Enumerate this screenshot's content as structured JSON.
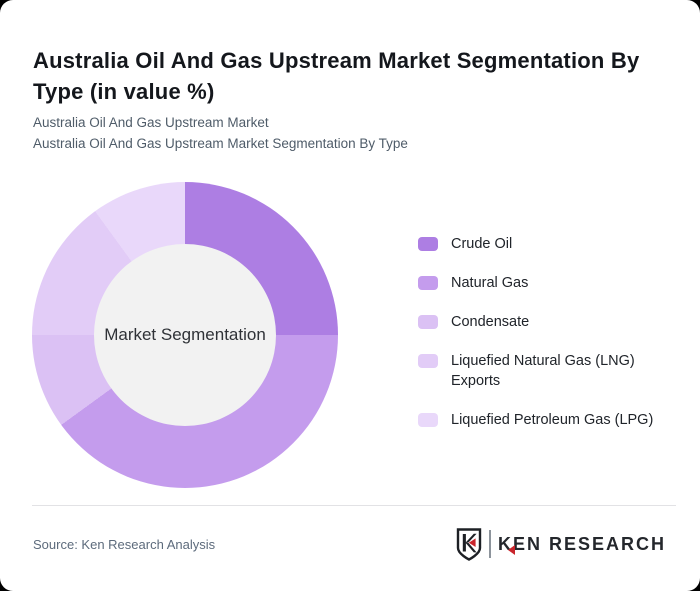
{
  "page": {
    "background_color": "#000000",
    "card_background_color": "#ffffff"
  },
  "header": {
    "title": "Australia Oil And Gas Upstream Market Segmentation By Type (in value %)",
    "subtitle_line1": "Australia Oil And Gas Upstream Market",
    "subtitle_line2": "Australia Oil And Gas Upstream Market Segmentation By Type"
  },
  "chart_data": {
    "type": "pie",
    "variant": "donut",
    "title": "Australia Oil And Gas Upstream Market Segmentation By Type (in value %)",
    "center_label": "Market Segmentation",
    "categories": [
      "Crude Oil",
      "Natural Gas",
      "Condensate",
      "Liquefied Natural Gas (LNG) Exports",
      "Liquefied Petroleum Gas (LPG)"
    ],
    "values": [
      25,
      40,
      10,
      15,
      10
    ],
    "unit": "%",
    "colors": [
      "#ad7ee3",
      "#c49ced",
      "#dbc1f4",
      "#e2ccf7",
      "#e9d8fa"
    ],
    "start_angle_deg": 0,
    "direction": "clockwise",
    "legend_position": "right",
    "inner_circle_color": "#f2f2f2",
    "data_labels_shown": false
  },
  "footer": {
    "source": "Source: Ken Research Analysis",
    "logo": {
      "shield_letter": "K",
      "brand_first_letter": "K",
      "brand_rest": "EN RESEARCH",
      "accent_color": "#c9252c",
      "text_color": "#24272c"
    }
  }
}
